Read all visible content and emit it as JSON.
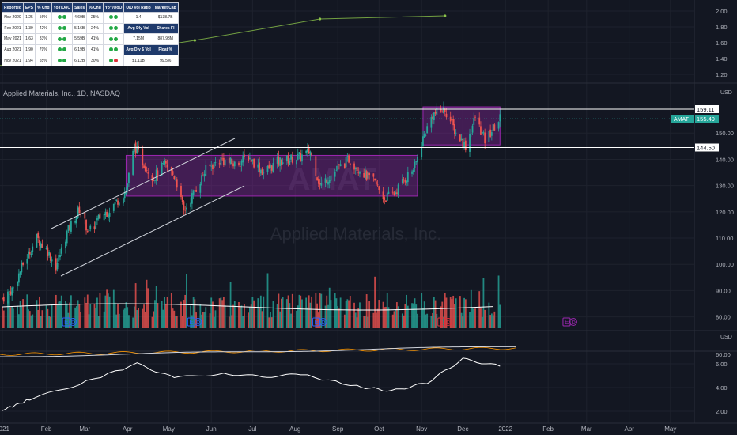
{
  "header": {
    "symbol_label": "Applied Materials, Inc., 1D, NASDAQ",
    "watermark": "Applied Materials, Inc."
  },
  "table": {
    "headers": [
      "Reported",
      "EPS",
      "% Chg",
      "YoY/QoQ",
      "Sales",
      "% Chg",
      "YoY/QoQ",
      "U/D Vol Ratio",
      "Market Cap"
    ],
    "rows": [
      {
        "reported": "Nov 2020",
        "eps": "1.25",
        "eps_chg": "56%",
        "eps_dots": [
          "#22a845",
          "#22a845"
        ],
        "sales": "4.69B",
        "sales_chg": "25%",
        "sales_dots": [
          "#22a845",
          "#22a845"
        ],
        "s1": "1.4",
        "s2": "$138.7B"
      },
      {
        "reported": "Feb 2021",
        "eps": "1.39",
        "eps_chg": "42%",
        "eps_dots": [
          "#22a845",
          "#22a845"
        ],
        "sales": "5.16B",
        "sales_chg": "24%",
        "sales_dots": [
          "#22a845",
          "#22a845"
        ],
        "s1": "Avg Dly Vol",
        "s2": "Shares Fl"
      },
      {
        "reported": "May 2021",
        "eps": "1.63",
        "eps_chg": "83%",
        "eps_dots": [
          "#22a845",
          "#22a845"
        ],
        "sales": "5.59B",
        "sales_chg": "41%",
        "sales_dots": [
          "#22a845",
          "#22a845"
        ],
        "s1": "7.15M",
        "s2": "887.93M"
      },
      {
        "reported": "Aug 2021",
        "eps": "1.90",
        "eps_chg": "79%",
        "eps_dots": [
          "#22a845",
          "#22a845"
        ],
        "sales": "6.19B",
        "sales_chg": "41%",
        "sales_dots": [
          "#22a845",
          "#22a845"
        ],
        "s1": "Avg Dly $ Vol",
        "s2": "Float %"
      },
      {
        "reported": "Nov 2021",
        "eps": "1.94",
        "eps_chg": "55%",
        "eps_dots": [
          "#22a845",
          "#22a845"
        ],
        "sales": "6.12B",
        "sales_chg": "30%",
        "sales_dots": [
          "#22a845",
          "#e0313a"
        ],
        "s1": "$1.11B",
        "s2": "99.5%"
      }
    ]
  },
  "colors": {
    "up": "#26a69a",
    "down": "#ef5350",
    "box": "#9c27b0",
    "bg": "#131722",
    "grid": "#1e222d",
    "axis_text": "#b2b5be",
    "ticker_bg": "#26a69a"
  },
  "chart_data": {
    "type": "candlestick",
    "symbol": "AMAT",
    "interval": "1D",
    "x_axis": {
      "tick_labels": [
        "2021",
        "Feb",
        "Mar",
        "Apr",
        "May",
        "Jun",
        "Jul",
        "Aug",
        "Sep",
        "Oct",
        "Nov",
        "Dec",
        "2022",
        "Feb",
        "Mar",
        "Apr",
        "May"
      ]
    },
    "price_axis": {
      "unit": "USD",
      "ticks": [
        80,
        90,
        100,
        110,
        120,
        130,
        140,
        150
      ],
      "range": [
        76,
        163
      ],
      "last_price": 155.49,
      "ticker_label": "AMAT"
    },
    "horizontal_lines": [
      159.11,
      144.5
    ],
    "ranges": [
      {
        "from": "2021-03-31",
        "to": "2021-10-29",
        "low": 126,
        "high": 141.5
      },
      {
        "from": "2021-11-02",
        "to": "2021-12-28",
        "low": 145.5,
        "high": 160
      }
    ],
    "price_path": [
      [
        "2020-12-31",
        87
      ],
      [
        "2021-01-08",
        91
      ],
      [
        "2021-01-15",
        100
      ],
      [
        "2021-01-25",
        110
      ],
      [
        "2021-02-02",
        105
      ],
      [
        "2021-02-08",
        99
      ],
      [
        "2021-02-16",
        112
      ],
      [
        "2021-02-25",
        121
      ],
      [
        "2021-03-04",
        112
      ],
      [
        "2021-03-12",
        118
      ],
      [
        "2021-03-19",
        121
      ],
      [
        "2021-03-31",
        128
      ],
      [
        "2021-04-06",
        145
      ],
      [
        "2021-04-12",
        139
      ],
      [
        "2021-04-20",
        133
      ],
      [
        "2021-04-28",
        138
      ],
      [
        "2021-05-06",
        133
      ],
      [
        "2021-05-12",
        120
      ],
      [
        "2021-05-20",
        128
      ],
      [
        "2021-05-28",
        136
      ],
      [
        "2021-06-08",
        140
      ],
      [
        "2021-06-18",
        138
      ],
      [
        "2021-06-28",
        141
      ],
      [
        "2021-07-09",
        135
      ],
      [
        "2021-07-19",
        139
      ],
      [
        "2021-07-28",
        140
      ],
      [
        "2021-08-05",
        141
      ],
      [
        "2021-08-12",
        143
      ],
      [
        "2021-08-19",
        130
      ],
      [
        "2021-08-27",
        134
      ],
      [
        "2021-09-09",
        140
      ],
      [
        "2021-09-17",
        136
      ],
      [
        "2021-09-28",
        131
      ],
      [
        "2021-10-05",
        125
      ],
      [
        "2021-10-12",
        127
      ],
      [
        "2021-10-19",
        132
      ],
      [
        "2021-10-27",
        137
      ],
      [
        "2021-11-02",
        148
      ],
      [
        "2021-11-09",
        157
      ],
      [
        "2021-11-18",
        159
      ],
      [
        "2021-11-26",
        150
      ],
      [
        "2021-12-03",
        145
      ],
      [
        "2021-12-10",
        156
      ],
      [
        "2021-12-17",
        147
      ],
      [
        "2021-12-28",
        155.49
      ]
    ],
    "volume": {
      "ticks": [],
      "ma_label": ""
    },
    "indicator_1": {
      "unit": "USD",
      "ticks": [
        60.0
      ],
      "series": [
        "orange",
        "white"
      ]
    },
    "indicator_2": {
      "ticks": [
        6.0,
        4.0,
        2.0
      ],
      "range": [
        1.0,
        7.0
      ],
      "path": [
        [
          "2020-12-31",
          2.1
        ],
        [
          "2021-01-20",
          3.0
        ],
        [
          "2021-02-25",
          4.3
        ],
        [
          "2021-04-08",
          6.0
        ],
        [
          "2021-05-05",
          4.8
        ],
        [
          "2021-06-10",
          5.2
        ],
        [
          "2021-07-08",
          4.9
        ],
        [
          "2021-08-05",
          5.1
        ],
        [
          "2021-09-15",
          4.1
        ],
        [
          "2021-10-10",
          3.7
        ],
        [
          "2021-11-05",
          4.4
        ],
        [
          "2021-12-01",
          6.4
        ],
        [
          "2021-12-28",
          5.8
        ]
      ]
    },
    "eps_chart": {
      "ticks": [
        2.0,
        1.8,
        1.6,
        1.4,
        1.2
      ],
      "range": [
        1.1,
        2.05
      ],
      "points": [
        [
          "2020-11-19",
          1.25
        ],
        [
          "2021-02-18",
          1.39
        ],
        [
          "2021-05-20",
          1.63
        ],
        [
          "2021-08-19",
          1.9
        ],
        [
          "2021-11-18",
          1.94
        ]
      ],
      "axis_label": "USD"
    },
    "earnings_markers": [
      {
        "date": "2021-02-18",
        "label": "E",
        "color": "#2962ff"
      },
      {
        "date": "2021-05-20",
        "label": "E",
        "color": "#2962ff"
      },
      {
        "date": "2021-08-19",
        "label": "E",
        "color": "#2962ff"
      },
      {
        "date": "2021-11-18",
        "label": "E",
        "color": "#e0313a"
      },
      {
        "date": "2022-02-17",
        "label": "E",
        "color": "#9c27b0"
      }
    ]
  }
}
